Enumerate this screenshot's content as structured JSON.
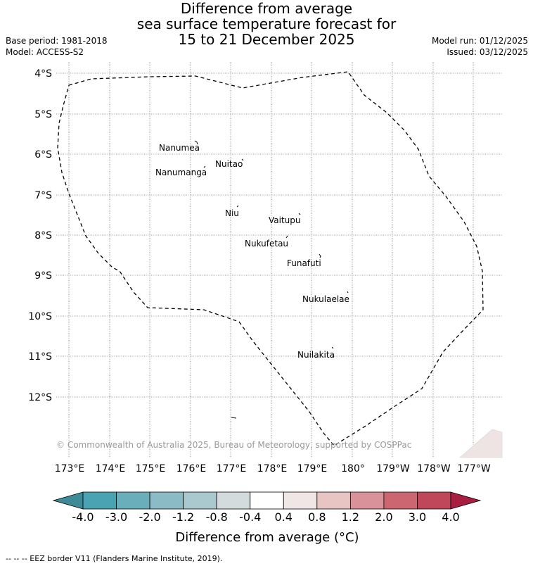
{
  "title": {
    "line1": "Difference from average",
    "line2": "sea surface temperature forecast for",
    "line3": "15 to 21 December 2025"
  },
  "meta": {
    "base_period": "Base period: 1981-2018",
    "model": "Model: ACCESS-S2",
    "model_run": "Model run: 01/12/2025",
    "issued": "Issued: 03/12/2025"
  },
  "map": {
    "lat_labels": [
      "4°S",
      "5°S",
      "6°S",
      "7°S",
      "8°S",
      "9°S",
      "10°S",
      "11°S",
      "12°S"
    ],
    "lon_labels": [
      "173°E",
      "174°E",
      "175°E",
      "176°E",
      "177°E",
      "178°E",
      "179°E",
      "180°",
      "179°W",
      "178°W",
      "177°W"
    ],
    "islands": [
      {
        "name": "Nanumea"
      },
      {
        "name": "Nuitao"
      },
      {
        "name": "Nanumanga"
      },
      {
        "name": "Niu"
      },
      {
        "name": "Vaitupu"
      },
      {
        "name": "Nukufetau"
      },
      {
        "name": "Funafuti"
      },
      {
        "name": "Nukulaelae"
      },
      {
        "name": "Nuilakita"
      }
    ],
    "copyright": "© Commonwealth of Australia 2025, Bureau of Meteorology, supported by COSPPac"
  },
  "colorbar": {
    "label": "Difference from average (°C)",
    "ticks": [
      "-4.0",
      "-3.0",
      "-2.0",
      "-1.2",
      "-0.8",
      "-0.4",
      "0.4",
      "0.8",
      "1.2",
      "2.0",
      "3.0",
      "4.0"
    ],
    "colors": [
      "#4aa3b3",
      "#6aadbb",
      "#8bbcc6",
      "#a9c9ce",
      "#d4dbdc",
      "#ffffff",
      "#f1e6e6",
      "#e8c5c3",
      "#d9929a",
      "#cc6670",
      "#c0465a"
    ],
    "under_color": "#3f8a99",
    "over_color": "#a81e40"
  },
  "footer": {
    "legend": "--  --  -- EEZ border V11 (Flanders Marine Institute, 2019)."
  }
}
